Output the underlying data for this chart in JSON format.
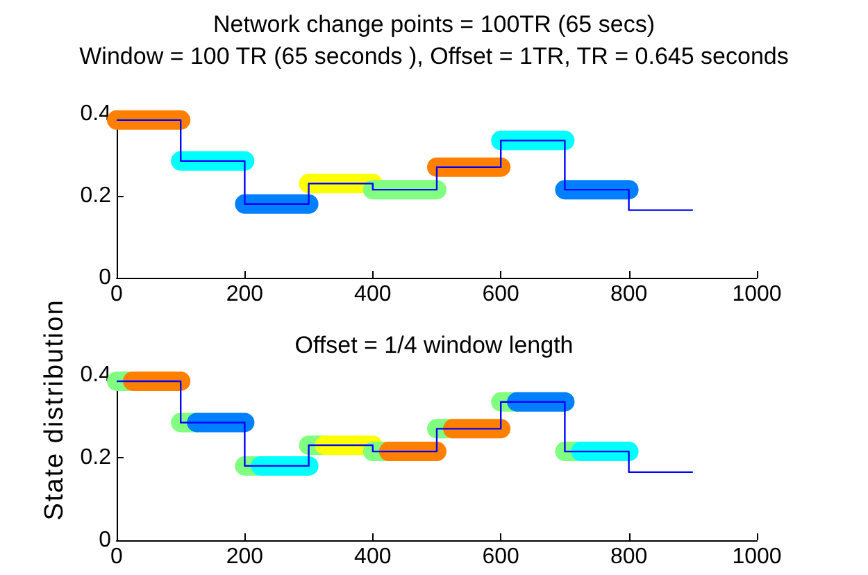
{
  "chart_data": [
    {
      "type": "line",
      "title": "Network change points = 100TR (65 secs)",
      "subtitle": "Window = 100 TR (65 seconds ), Offset = 1TR, TR = 0.645 seconds",
      "ylabel": "State distribution",
      "xlim": [
        0,
        1000
      ],
      "xticks": [
        0,
        200,
        400,
        600,
        800,
        1000
      ],
      "ylim": [
        0,
        0.4
      ],
      "yticks": [
        0,
        0.2,
        0.4
      ],
      "marker": "none",
      "line_style": "solid",
      "series": [
        {
          "color": "#ff8000",
          "x": [
            0,
            100
          ],
          "values": [
            0.385,
            0.385
          ]
        },
        {
          "color": "#00ffff",
          "x": [
            100,
            200
          ],
          "values": [
            0.285,
            0.285
          ]
        },
        {
          "color": "#0080ff",
          "x": [
            200,
            300
          ],
          "values": [
            0.18,
            0.18
          ]
        },
        {
          "color": "#ffff00",
          "x": [
            300,
            400
          ],
          "values": [
            0.23,
            0.23
          ]
        },
        {
          "color": "#80ff80",
          "x": [
            400,
            500
          ],
          "values": [
            0.215,
            0.215
          ]
        },
        {
          "color": "#ff8000",
          "x": [
            500,
            600
          ],
          "values": [
            0.27,
            0.27
          ]
        },
        {
          "color": "#00ffff",
          "x": [
            600,
            700
          ],
          "values": [
            0.335,
            0.335
          ]
        },
        {
          "color": "#0080ff",
          "x": [
            700,
            800
          ],
          "values": [
            0.215,
            0.215
          ]
        },
        {
          "type": "step",
          "color": "#0000ff",
          "x": [
            0,
            100,
            200,
            300,
            400,
            500,
            600,
            700,
            800,
            900
          ],
          "values": [
            0.385,
            0.285,
            0.18,
            0.23,
            0.215,
            0.27,
            0.335,
            0.215,
            0.165,
            0.165
          ]
        }
      ]
    },
    {
      "type": "line",
      "title": "Offset = 1/4 window length",
      "xlim": [
        0,
        1000
      ],
      "xticks": [
        0,
        200,
        400,
        600,
        800,
        1000
      ],
      "ylim": [
        0,
        0.4
      ],
      "yticks": [
        0,
        0.2,
        0.4
      ],
      "marker": "none",
      "line_style": "solid",
      "series": [
        {
          "color": "#80ff80",
          "x": [
            0,
            25
          ],
          "values": [
            0.385,
            0.385
          ]
        },
        {
          "color": "#ff8000",
          "x": [
            25,
            100
          ],
          "values": [
            0.385,
            0.385
          ]
        },
        {
          "color": "#80ff80",
          "x": [
            100,
            125
          ],
          "values": [
            0.285,
            0.285
          ]
        },
        {
          "color": "#0080ff",
          "x": [
            125,
            200
          ],
          "values": [
            0.285,
            0.285
          ]
        },
        {
          "color": "#80ff80",
          "x": [
            200,
            225
          ],
          "values": [
            0.18,
            0.18
          ]
        },
        {
          "color": "#00ffff",
          "x": [
            225,
            300
          ],
          "values": [
            0.18,
            0.18
          ]
        },
        {
          "color": "#80ff80",
          "x": [
            300,
            325
          ],
          "values": [
            0.23,
            0.23
          ]
        },
        {
          "color": "#ffff00",
          "x": [
            325,
            400
          ],
          "values": [
            0.23,
            0.23
          ]
        },
        {
          "color": "#80ff80",
          "x": [
            400,
            425
          ],
          "values": [
            0.215,
            0.215
          ]
        },
        {
          "color": "#ff8000",
          "x": [
            425,
            500
          ],
          "values": [
            0.215,
            0.215
          ]
        },
        {
          "color": "#80ff80",
          "x": [
            500,
            525
          ],
          "values": [
            0.27,
            0.27
          ]
        },
        {
          "color": "#ff8000",
          "x": [
            525,
            600
          ],
          "values": [
            0.27,
            0.27
          ]
        },
        {
          "color": "#80ff80",
          "x": [
            600,
            625
          ],
          "values": [
            0.335,
            0.335
          ]
        },
        {
          "color": "#0080ff",
          "x": [
            625,
            700
          ],
          "values": [
            0.335,
            0.335
          ]
        },
        {
          "color": "#80ff80",
          "x": [
            700,
            725
          ],
          "values": [
            0.215,
            0.215
          ]
        },
        {
          "color": "#00ffff",
          "x": [
            725,
            800
          ],
          "values": [
            0.215,
            0.215
          ]
        },
        {
          "type": "step",
          "color": "#0000ff",
          "x": [
            0,
            100,
            200,
            300,
            400,
            500,
            600,
            700,
            800,
            900
          ],
          "values": [
            0.385,
            0.285,
            0.18,
            0.23,
            0.215,
            0.27,
            0.335,
            0.215,
            0.165,
            0.165
          ]
        }
      ]
    }
  ]
}
